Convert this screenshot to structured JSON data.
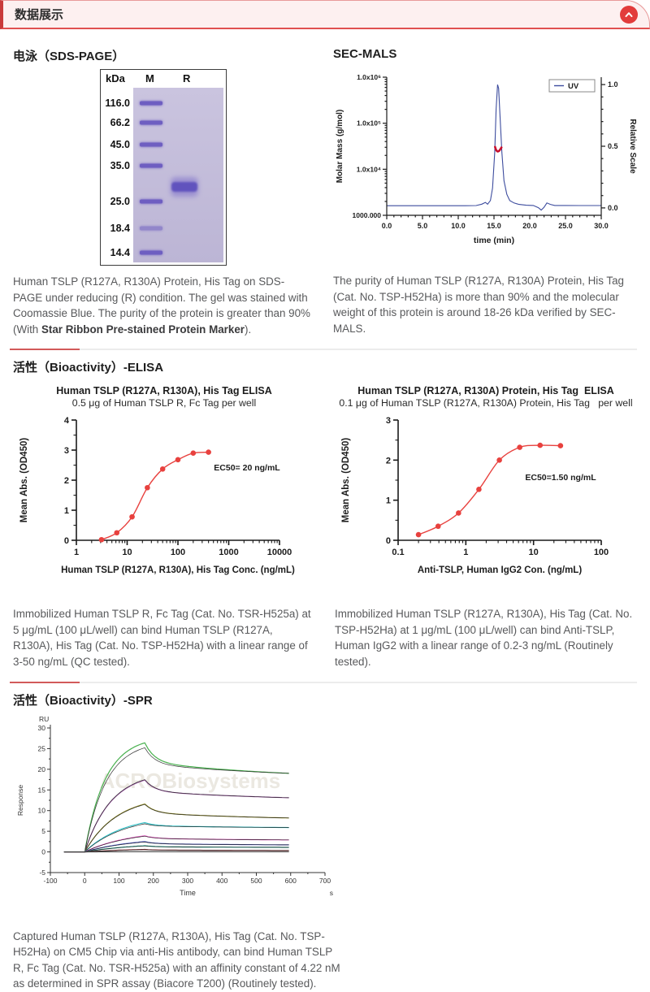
{
  "header": {
    "title": "数据展示"
  },
  "sds_page": {
    "title": "电泳（SDS-PAGE）",
    "gel": {
      "columns": [
        "kDa",
        "M",
        "R"
      ],
      "marker_bands": [
        {
          "label": "116.0",
          "y": 0.09
        },
        {
          "label": "66.2",
          "y": 0.2
        },
        {
          "label": "45.0",
          "y": 0.33
        },
        {
          "label": "35.0",
          "y": 0.45
        },
        {
          "label": "25.0",
          "y": 0.655
        },
        {
          "label": "18.4",
          "y": 0.81
        },
        {
          "label": "14.4",
          "y": 0.955
        }
      ],
      "sample_band": {
        "lane": "R",
        "y": 0.575,
        "approx_kda": "28"
      }
    },
    "caption_pre": "Human TSLP (R127A, R130A) Protein, His Tag on SDS-PAGE under reducing (R) condition. The gel was stained with Coomassie Blue. The purity of the protein is greater than 90% (With ",
    "caption_bold": "Star Ribbon Pre-stained Protein Marker",
    "caption_post": ")."
  },
  "sec_mals": {
    "title": "SEC-MALS",
    "caption": "The purity of Human TSLP (R127A, R130A) Protein, His Tag (Cat. No. TSP-H52Ha) is more than 90% and the molecular weight of this protein is around 18-26 kDa verified by SEC-MALS."
  },
  "elisa": {
    "section_title": "活性（Bioactivity）-ELISA",
    "left_caption": "Immobilized Human TSLP R, Fc Tag (Cat. No. TSR-H525a) at 5 μg/mL (100 μL/well) can bind Human TSLP (R127A, R130A), His Tag (Cat. No. TSP-H52Ha) with a linear range of 3-50 ng/mL (QC tested).",
    "right_caption": "Immobilized Human TSLP (R127A, R130A), His Tag (Cat. No. TSP-H52Ha) at 1 μg/mL (100 μL/well) can bind Anti-TSLP, Human IgG2 with a linear range of 0.2-3 ng/mL (Routinely tested)."
  },
  "spr": {
    "section_title": "活性（Bioactivity）-SPR",
    "caption": "Captured Human TSLP (R127A, R130A), His Tag (Cat. No. TSP-H52Ha) on CM5 Chip via anti-His antibody, can bind Human TSLP R, Fc Tag (Cat. No. TSR-H525a) with an affinity constant of 4.22 nM as determined in SPR assay (Biacore T200) (Routinely tested)."
  },
  "chart_data": [
    {
      "id": "sec_mals",
      "type": "line",
      "title": "SEC-MALS",
      "xlabel": "time (min)",
      "ylabel_left": "Molar Mass (g/mol)",
      "ylabel_right": "Relative Scale",
      "xlim": [
        0,
        30
      ],
      "x_ticks": [
        0,
        5,
        10,
        15,
        20,
        25,
        30
      ],
      "x_tick_labels": [
        "0.0",
        "5.0",
        "10.0",
        "15.0",
        "20.0",
        "25.0",
        "30.0"
      ],
      "y_left_tick_labels": [
        "1000.000",
        "1.0x10⁴",
        "1.0x10⁵",
        "1.0x10⁶"
      ],
      "y_right_ticks": [
        0,
        0.5,
        1
      ],
      "y_right_tick_labels": [
        "0.0",
        "0.5",
        "1.0"
      ],
      "legend": [
        {
          "label": "UV",
          "color": "#3d4c9e"
        }
      ],
      "series": [
        {
          "name": "UV",
          "color": "#3d4c9e",
          "axis": "right",
          "points": [
            [
              0,
              0.018
            ],
            [
              3,
              0.018
            ],
            [
              6,
              0.018
            ],
            [
              9,
              0.018
            ],
            [
              11,
              0.018
            ],
            [
              12.5,
              0.019
            ],
            [
              13.3,
              0.03
            ],
            [
              13.8,
              0.045
            ],
            [
              14.1,
              0.03
            ],
            [
              14.5,
              0.06
            ],
            [
              14.8,
              0.16
            ],
            [
              15.1,
              0.45
            ],
            [
              15.3,
              0.8
            ],
            [
              15.5,
              1.0
            ],
            [
              15.65,
              0.97
            ],
            [
              15.8,
              0.8
            ],
            [
              16.1,
              0.45
            ],
            [
              16.4,
              0.22
            ],
            [
              16.8,
              0.11
            ],
            [
              17.2,
              0.06
            ],
            [
              17.8,
              0.04
            ],
            [
              18.5,
              0.028
            ],
            [
              19.5,
              0.022
            ],
            [
              20.5,
              0.02
            ],
            [
              21.2,
              0.002
            ],
            [
              21.6,
              -0.018
            ],
            [
              22,
              0.005
            ],
            [
              22.4,
              0.04
            ],
            [
              22.9,
              0.028
            ],
            [
              23.5,
              0.02
            ],
            [
              25,
              0.02
            ],
            [
              27,
              0.019
            ],
            [
              30,
              0.019
            ]
          ]
        },
        {
          "name": "Molar Mass",
          "color": "#c8102e",
          "axis": "right",
          "points": [
            [
              15.15,
              0.495
            ],
            [
              15.3,
              0.47
            ],
            [
              15.5,
              0.458
            ],
            [
              15.7,
              0.462
            ],
            [
              15.9,
              0.476
            ],
            [
              16.05,
              0.49
            ]
          ]
        }
      ]
    },
    {
      "id": "elisa_left",
      "type": "scatter",
      "title": "Human TSLP (R127A, R130A), His Tag ELISA",
      "subtitle": "0.5 μg of Human TSLP R, Fc Tag per well",
      "xlabel": "Human TSLP (R127A, R130A), His Tag Conc. (ng/mL)",
      "ylabel": "Mean Abs. (OD450)",
      "xscale": "log",
      "xlim": [
        1,
        10000
      ],
      "ylim": [
        0,
        4
      ],
      "x_tick_labels": [
        "1",
        "10",
        "100",
        "1000",
        "10000"
      ],
      "y_ticks": [
        0,
        1,
        2,
        3,
        4
      ],
      "x": [
        3.125,
        6.25,
        12.5,
        25,
        50,
        100,
        200,
        400
      ],
      "y": [
        0.02,
        0.25,
        0.78,
        1.75,
        2.37,
        2.68,
        2.9,
        2.93
      ],
      "ec50_label": "EC50= 20 ng/mL",
      "ec50_pos": [
        0.84,
        0.42
      ],
      "color": "#e8413e"
    },
    {
      "id": "elisa_right",
      "type": "scatter",
      "title": "Human TSLP (R127A, R130A) Protein, His Tag  ELISA",
      "subtitle": "0.1 μg of Human TSLP (R127A, R130A) Protein, His Tag   per well",
      "xlabel": "Anti-TSLP, Human IgG2 Con. (ng/mL)",
      "ylabel": "Mean Abs. (OD450)",
      "xscale": "log",
      "xlim": [
        0.1,
        100
      ],
      "ylim": [
        0,
        3
      ],
      "x_tick_labels": [
        "0.1",
        "1",
        "10",
        "100"
      ],
      "y_ticks": [
        0,
        1,
        2,
        3
      ],
      "x": [
        0.2,
        0.39,
        0.78,
        1.56,
        3.13,
        6.25,
        12.5,
        25
      ],
      "y": [
        0.14,
        0.35,
        0.68,
        1.27,
        2.0,
        2.32,
        2.37,
        2.36
      ],
      "ec50_label": "EC50=1.50 ng/mL",
      "ec50_pos": [
        0.8,
        0.5
      ],
      "color": "#e8413e"
    },
    {
      "id": "spr",
      "type": "line",
      "xlabel": "Time",
      "x_unit": "s",
      "ylabel": "Response",
      "y_unit": "RU",
      "xlim": [
        -100,
        700
      ],
      "ylim": [
        -5,
        30
      ],
      "x_ticks": [
        -100,
        0,
        100,
        200,
        300,
        400,
        500,
        600,
        700
      ],
      "y_ticks": [
        -5,
        0,
        5,
        10,
        15,
        20,
        25,
        30
      ],
      "baseline_start": -60,
      "association_start": 0,
      "dissociation_start": 175,
      "end_time": 600,
      "watermark": "ACROBiosystems",
      "series": [
        {
          "color": "#49b14f",
          "peak": 26.4,
          "fit_peak": 25.2,
          "end": 19.0
        },
        {
          "color": "#a85fb0",
          "peak": 17.4,
          "fit_peak": 17.5,
          "end": 13.1
        },
        {
          "color": "#99942f",
          "peak": 11.6,
          "fit_peak": 11.5,
          "end": 8.2
        },
        {
          "color": "#35c3c9",
          "peak": 7.1,
          "fit_peak": 6.8,
          "end": 5.9
        },
        {
          "color": "#e55fc4",
          "peak": 3.9,
          "fit_peak": 3.8,
          "end": 2.9
        },
        {
          "color": "#5661c9",
          "peak": 2.5,
          "fit_peak": 2.4,
          "end": 1.7
        },
        {
          "color": "#2aa18c",
          "peak": 1.5,
          "fit_peak": 1.45,
          "end": 1.1
        },
        {
          "color": "#96333a",
          "peak": 0.6,
          "fit_peak": 0.55,
          "end": 0.35
        },
        {
          "color": "#777777",
          "peak": 0.08,
          "fit_peak": 0.06,
          "end": 0.05
        }
      ]
    }
  ]
}
